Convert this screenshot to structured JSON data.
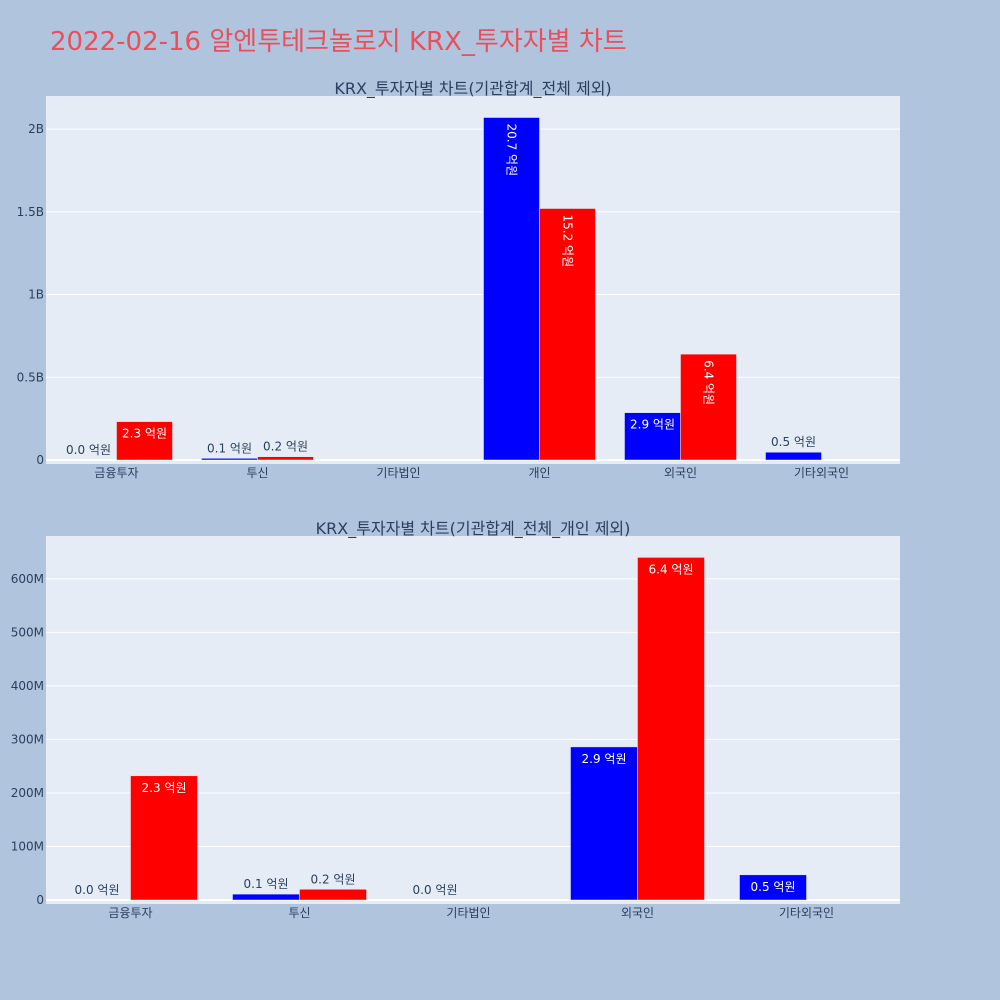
{
  "title": "2022-02-16 알엔투테크놀로지 KRX_투자자별 차트",
  "colors": {
    "page_bg": "#b0c4de",
    "plot_bg": "#e5ecf6",
    "grid": "#ffffff",
    "buy": "#0000ff",
    "sell": "#ff0000",
    "title": "#e8505b",
    "text": "#2a3f5f"
  },
  "chart_data": [
    {
      "type": "bar",
      "title": "KRX_투자자별 차트(기관합계_전체 제외)",
      "categories": [
        "금융투자",
        "투신",
        "기타법인",
        "개인",
        "외국인",
        "기타외국인"
      ],
      "ylim": [
        0,
        2200000000
      ],
      "y_ticks": [
        0,
        500000000,
        1000000000,
        1500000000,
        2000000000
      ],
      "y_tick_labels": [
        "0",
        "0.5B",
        "1B",
        "1.5B",
        "2B"
      ],
      "grid": true,
      "series": [
        {
          "color": "#0000ff",
          "values": [
            0,
            10000000,
            null,
            2070000000,
            286000000,
            47000000
          ],
          "labels": [
            "0.0 억원",
            "0.1 억원",
            "",
            "20.7 억원",
            "2.9 억원",
            "0.5 억원"
          ]
        },
        {
          "color": "#ff0000",
          "values": [
            232000000,
            20000000,
            null,
            1520000000,
            640000000,
            null
          ],
          "labels": [
            "2.3 억원",
            "0.2 억원",
            "",
            "15.2 억원",
            "6.4 억원",
            ""
          ]
        }
      ]
    },
    {
      "type": "bar",
      "title": "KRX_투자자별 차트(기관합계_전체_개인 제외)",
      "categories": [
        "금융투자",
        "투신",
        "기타법인",
        "외국인",
        "기타외국인"
      ],
      "ylim": [
        0,
        680000000
      ],
      "y_ticks": [
        0,
        100000000,
        200000000,
        300000000,
        400000000,
        500000000,
        600000000
      ],
      "y_tick_labels": [
        "0",
        "100M",
        "200M",
        "300M",
        "400M",
        "500M",
        "600M"
      ],
      "grid": true,
      "series": [
        {
          "color": "#0000ff",
          "values": [
            0,
            11000000,
            0,
            286000000,
            47000000
          ],
          "labels": [
            "0.0 억원",
            "0.1 억원",
            "0.0 억원",
            "2.9 억원",
            "0.5 억원"
          ]
        },
        {
          "color": "#ff0000",
          "values": [
            232000000,
            20000000,
            null,
            640000000,
            null
          ],
          "labels": [
            "2.3 억원",
            "0.2 억원",
            "",
            "6.4 억원",
            ""
          ]
        }
      ]
    }
  ]
}
